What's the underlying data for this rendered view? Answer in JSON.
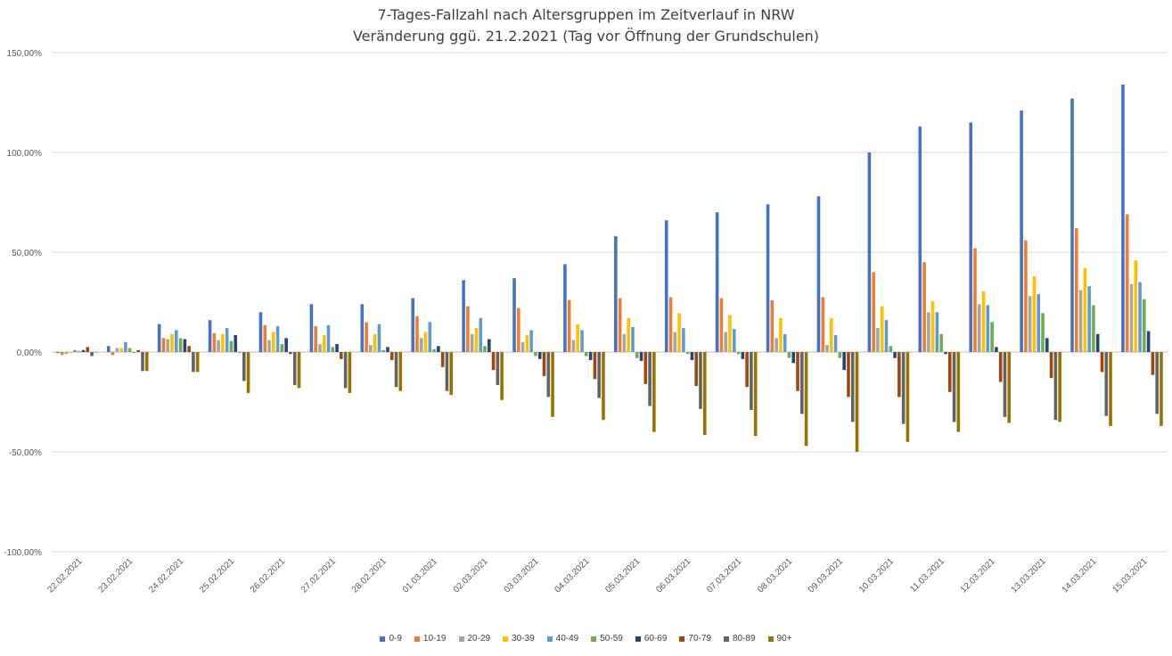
{
  "chart_data": {
    "type": "bar",
    "title": "7-Tages-Fallzahl nach Altersgruppen im Zeitverlauf in NRW",
    "subtitle": "Veränderung ggü. 21.2.2021 (Tag vor Öffnung der Grundschulen)",
    "ylim": [
      -100,
      150
    ],
    "yticks": [
      "150,00%",
      "100,00%",
      "50,00%",
      "0,00%",
      "-50,00%",
      "-100,00%"
    ],
    "ytick_values": [
      150,
      100,
      50,
      0,
      -50,
      -100
    ],
    "grid": true,
    "legend_position": "bottom",
    "categories": [
      "22.02.2021",
      "23.02.2021",
      "24.02.2021",
      "25.02.2021",
      "26.02.2021",
      "27.02.2021",
      "28.02.2021",
      "01.03.2021",
      "02.03.2021",
      "03.03.2021",
      "04.03.2021",
      "05.03.2021",
      "06.03.2021",
      "07.03.2021",
      "08.03.2021",
      "09.03.2021",
      "10.03.2021",
      "11.03.2021",
      "12.03.2021",
      "13.03.2021",
      "14.03.2021",
      "15.03.2021"
    ],
    "series": [
      {
        "name": "0-9",
        "color": "#4472C4",
        "values": [
          -0.5,
          3,
          14,
          16,
          20,
          24,
          24,
          27,
          36,
          37,
          44,
          58,
          66,
          70,
          74,
          78,
          100,
          113,
          115,
          121,
          127,
          134
        ]
      },
      {
        "name": "10-19",
        "color": "#ED7D31",
        "values": [
          -1.5,
          -1.5,
          7,
          9.5,
          13.5,
          13,
          15,
          18,
          23,
          22,
          26,
          27,
          27.5,
          27,
          26,
          27.5,
          40,
          45,
          52,
          56,
          62,
          69
        ]
      },
      {
        "name": "20-29",
        "color": "#A5A5A5",
        "values": [
          -1,
          2,
          6.5,
          6,
          6,
          4,
          3.5,
          7,
          9,
          5,
          6,
          9,
          10,
          10,
          7,
          3.5,
          12,
          20,
          24,
          28,
          31,
          34
        ]
      },
      {
        "name": "30-39",
        "color": "#FFC000",
        "values": [
          -0.5,
          2,
          9,
          9,
          10,
          8.5,
          9,
          10,
          12,
          8.5,
          14,
          17,
          19.5,
          18.5,
          17,
          17,
          23,
          25.5,
          30.5,
          38,
          42,
          46
        ]
      },
      {
        "name": "40-49",
        "color": "#5B9BD5",
        "values": [
          1,
          5,
          11,
          12,
          13,
          13.5,
          14,
          15,
          17,
          11,
          11,
          12.5,
          12,
          11.5,
          9,
          8.5,
          16,
          20,
          23.5,
          29,
          33,
          35
        ]
      },
      {
        "name": "50-59",
        "color": "#70AD47",
        "values": [
          0.5,
          2,
          7,
          5.5,
          4,
          2.5,
          1,
          1.5,
          3,
          -2,
          -2,
          -3,
          -1,
          -1,
          -3,
          -3,
          3,
          9,
          15,
          19.5,
          23.5,
          26.5
        ]
      },
      {
        "name": "60-69",
        "color": "#264478",
        "values": [
          1,
          0,
          6.5,
          8.5,
          7,
          4,
          2.5,
          3,
          6.5,
          -3.5,
          -4,
          -4.5,
          -4,
          -3.5,
          -5.5,
          -9,
          -3,
          -1,
          2.5,
          7,
          9,
          10.5
        ]
      },
      {
        "name": "70-79",
        "color": "#9E480E",
        "values": [
          2.5,
          1,
          3,
          0,
          -1,
          -3.5,
          -4,
          -7.5,
          -9,
          -12,
          -13.5,
          -16,
          -17,
          -17.5,
          -19.5,
          -22.5,
          -22.5,
          -20,
          -15,
          -13,
          -10,
          -11.5
        ]
      },
      {
        "name": "80-89",
        "color": "#636363",
        "values": [
          -2,
          -9.5,
          -10,
          -14.5,
          -16.5,
          -18,
          -17.5,
          -19.5,
          -16.5,
          -22.5,
          -23,
          -27,
          -28.5,
          -29,
          -31,
          -35,
          -36,
          -35,
          -32.5,
          -34,
          -32,
          -31
        ]
      },
      {
        "name": "90+",
        "color": "#997300",
        "values": [
          0,
          -9.5,
          -10,
          -20.5,
          -18,
          -20.5,
          -19.5,
          -21.5,
          -24,
          -32.5,
          -34,
          -40,
          -41.5,
          -42,
          -47,
          -50,
          -45,
          -40,
          -35.5,
          -35,
          -37,
          -37
        ]
      }
    ]
  }
}
